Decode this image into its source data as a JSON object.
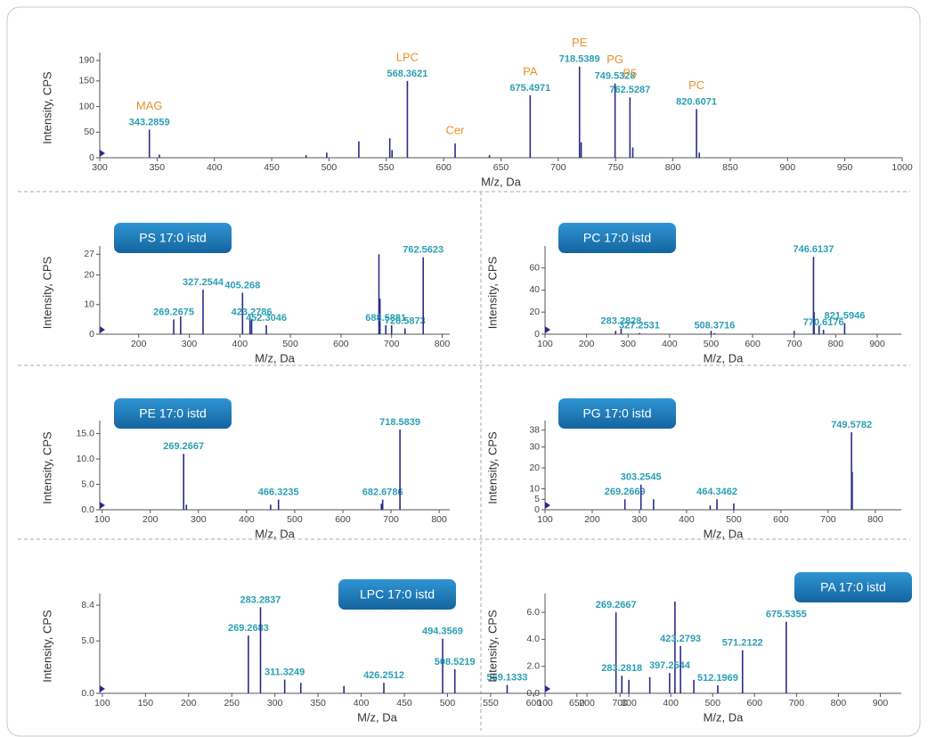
{
  "chart_data": [
    {
      "type": "stem",
      "xlabel": "M/z, Da",
      "ylabel": "Intensity, CPS",
      "color": "#2b2b8a",
      "xlim": [
        300,
        1000
      ],
      "xticks": [
        300,
        350,
        400,
        450,
        500,
        550,
        600,
        650,
        700,
        750,
        800,
        850,
        900,
        950,
        1000
      ],
      "ylim": [
        0,
        195
      ],
      "yticks": [
        0,
        50,
        100,
        150,
        190
      ],
      "x": [
        343.2859,
        568.3621,
        675.4971,
        718.5389,
        749.5328,
        762.5287,
        820.6071
      ],
      "values": [
        55,
        150,
        122,
        178,
        145,
        118,
        95
      ],
      "names": [
        "MAG",
        "LPC",
        "PA",
        "PE",
        "PG",
        "P5",
        "PC"
      ],
      "minor_x": [
        352,
        480,
        498,
        526,
        553,
        555,
        610,
        640,
        720,
        765,
        823
      ],
      "minor_values": [
        6,
        5,
        10,
        32,
        38,
        15,
        28,
        5,
        30,
        20,
        10
      ],
      "minor_names": [
        null,
        null,
        null,
        null,
        null,
        null,
        "Cer",
        null,
        null,
        null,
        null
      ]
    },
    {
      "type": "stem",
      "title": "PS 17:0 istd",
      "xlabel": "M/z, Da",
      "ylabel": "Intensity, CPS",
      "color": "#2b2b8a",
      "xlim": [
        123,
        815
      ],
      "xticks": [
        200,
        300,
        400,
        500,
        600,
        700,
        800
      ],
      "ylim": [
        0,
        28
      ],
      "yticks": [
        0,
        10,
        20,
        27
      ],
      "x": [
        269.2675,
        327.2544,
        405.268,
        423.2786,
        452.3046,
        688.5881,
        726.5873,
        762.5623
      ],
      "values": [
        5,
        15,
        14,
        5,
        3,
        3,
        2,
        26
      ],
      "names": [
        null,
        null,
        null,
        null,
        null,
        null,
        null,
        null
      ],
      "minor_x": [
        283,
        420,
        675,
        677,
        700
      ],
      "minor_values": [
        6,
        6,
        27,
        12,
        3
      ],
      "minor_names": [
        null,
        null,
        null,
        null,
        null
      ]
    },
    {
      "type": "stem",
      "title": "PC 17:0 istd",
      "xlabel": "M/z, Da",
      "ylabel": "Intensity, CPS",
      "color": "#2b2b8a",
      "xlim": [
        100,
        958
      ],
      "xticks": [
        100,
        200,
        300,
        400,
        500,
        600,
        700,
        800,
        900
      ],
      "ylim": [
        0,
        75
      ],
      "yticks": [
        0,
        20,
        40,
        60
      ],
      "x": [
        283.2828,
        327.2531,
        508.3716,
        746.6137,
        770.6176,
        821.5946
      ],
      "values": [
        5,
        1,
        1,
        70,
        4,
        10
      ],
      "names": [
        null,
        null,
        null,
        null,
        null,
        null
      ],
      "minor_x": [
        270,
        500,
        700,
        748,
        760
      ],
      "minor_values": [
        3,
        3,
        3,
        20,
        8
      ],
      "minor_names": [
        null,
        null,
        null,
        null,
        null
      ]
    },
    {
      "type": "stem",
      "title": "PE 17:0 istd",
      "xlabel": "M/z, Da",
      "ylabel": "Intensity, CPS",
      "color": "#2b2b8a",
      "xlim": [
        95,
        822
      ],
      "xticks": [
        100,
        200,
        300,
        400,
        500,
        600,
        700,
        800
      ],
      "ylim": [
        0,
        16.5
      ],
      "yticks": [
        {
          "value": 0,
          "label": "0.0"
        },
        {
          "value": 5,
          "label": "5.0"
        },
        {
          "value": 10,
          "label": "10.0"
        },
        {
          "value": 15,
          "label": "15.0"
        }
      ],
      "x": [
        269.2667,
        466.3235,
        682.6786,
        718.5839
      ],
      "values": [
        11,
        2,
        2,
        15.8
      ],
      "names": [
        null,
        null,
        null,
        null
      ],
      "minor_x": [
        275,
        450,
        680
      ],
      "minor_values": [
        1,
        1,
        1.2
      ],
      "minor_names": [
        null,
        null,
        null
      ]
    },
    {
      "type": "stem",
      "title": "PG 17:0 istd",
      "xlabel": "M/z, Da",
      "ylabel": "Intensity, CPS",
      "color": "#2b2b8a",
      "xlim": [
        100,
        855
      ],
      "xticks": [
        100,
        200,
        300,
        400,
        500,
        600,
        700,
        800
      ],
      "ylim": [
        0,
        40
      ],
      "yticks": [
        0,
        5,
        10,
        20,
        30,
        38
      ],
      "x": [
        269.2669,
        303.2545,
        464.3462,
        749.5782
      ],
      "values": [
        5,
        12,
        5,
        37
      ],
      "names": [
        null,
        null,
        null,
        null
      ],
      "minor_x": [
        330,
        450,
        500,
        751
      ],
      "minor_values": [
        5,
        2,
        3,
        18
      ],
      "minor_names": [
        null,
        null,
        null,
        null
      ]
    },
    {
      "type": "stem",
      "title": "LPC 17:0 istd",
      "xlabel": "M/z, Da",
      "ylabel": "Intensity, CPS",
      "color": "#2b2b8a",
      "xlim": [
        97,
        740
      ],
      "xticks": [
        100,
        150,
        200,
        250,
        300,
        350,
        400,
        450,
        500,
        550,
        600,
        650,
        700
      ],
      "ylim": [
        0,
        9
      ],
      "yticks": [
        {
          "value": 0,
          "label": "0.0"
        },
        {
          "value": 5,
          "label": "5.0"
        },
        8.4
      ],
      "x": [
        269.2683,
        283.2837,
        311.3249,
        426.2512,
        494.3569,
        508.5219,
        569.1333
      ],
      "values": [
        5.5,
        8.2,
        1.3,
        1,
        5.2,
        2.3,
        0.8
      ],
      "names": [
        null,
        null,
        null,
        null,
        null,
        null,
        null
      ],
      "minor_x": [
        330,
        380
      ],
      "minor_values": [
        1,
        0.7
      ],
      "minor_names": [
        null,
        null
      ]
    },
    {
      "type": "stem",
      "title": "PA 17:0 istd",
      "xlabel": "M/z, Da",
      "ylabel": "Intensity, CPS",
      "color": "#2b2b8a",
      "xlim": [
        100,
        950
      ],
      "xticks": [
        100,
        200,
        300,
        400,
        500,
        600,
        700,
        800,
        900
      ],
      "ylim": [
        0,
        7
      ],
      "yticks": [
        {
          "value": 0,
          "label": "0.0"
        },
        {
          "value": 2,
          "label": "2.0"
        },
        {
          "value": 4,
          "label": "4.0"
        },
        {
          "value": 6,
          "label": "6.0"
        }
      ],
      "x": [
        269.2667,
        283.2818,
        397.2544,
        423.2793,
        512.1969,
        571.2122,
        675.5355
      ],
      "values": [
        6,
        1.3,
        1.5,
        3.5,
        0.6,
        3.2,
        5.3
      ],
      "names": [
        null,
        null,
        null,
        null,
        null,
        null,
        null
      ],
      "minor_x": [
        300,
        350,
        410,
        455
      ],
      "minor_values": [
        1,
        1.2,
        6.8,
        1
      ],
      "minor_names": [
        null,
        null,
        null,
        null
      ]
    }
  ]
}
